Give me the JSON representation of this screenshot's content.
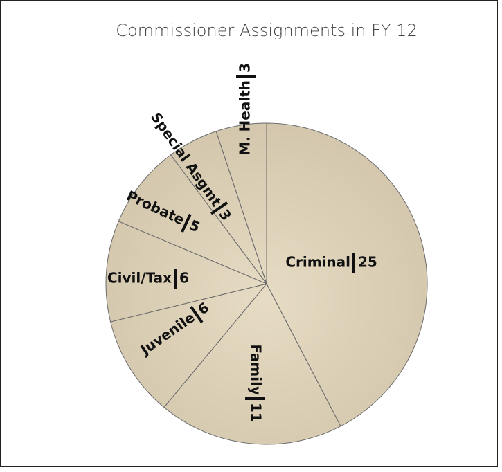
{
  "chart_data": {
    "type": "pie",
    "title": "Commissioner Assignments in FY 12",
    "categories": [
      "Criminal",
      "Family",
      "Juvenile",
      "Civil/Tax",
      "Probate",
      "Special Asgmt",
      "M. Health"
    ],
    "values": [
      25,
      11,
      6,
      6,
      5,
      3,
      3
    ],
    "color": "#d8c9a8"
  }
}
